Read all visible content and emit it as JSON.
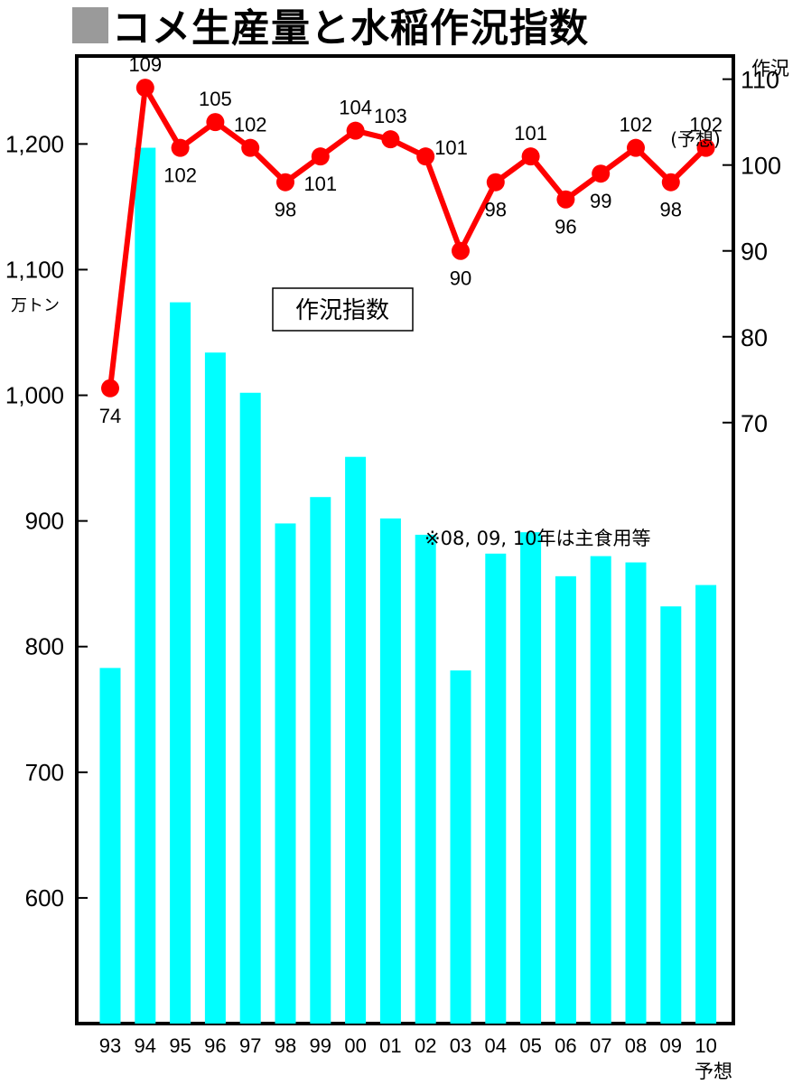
{
  "title": "コメ生産量と水稲作況指数",
  "chart_data": {
    "type": "bar",
    "categories": [
      "93",
      "94",
      "95",
      "96",
      "97",
      "98",
      "99",
      "00",
      "01",
      "02",
      "03",
      "04",
      "05",
      "06",
      "07",
      "08",
      "09",
      "10"
    ],
    "x_sublabel_last": "予想",
    "left_axis": {
      "unit": "万トン",
      "ticks": [
        600,
        700,
        800,
        900,
        1000,
        1100,
        1200
      ],
      "tick_labels": [
        "600",
        "700",
        "800",
        "900",
        "1,000",
        "1,100",
        "1,200"
      ],
      "range": [
        500,
        1270
      ]
    },
    "right_axis": {
      "label": "作況",
      "ticks": [
        70,
        80,
        90,
        100,
        110
      ],
      "range": [
        0,
        112.7
      ]
    },
    "series": [
      {
        "kind": "bar",
        "color": "#00ffff",
        "values": [
          783,
          1197,
          1074,
          1034,
          1002,
          898,
          919,
          951,
          902,
          889,
          781,
          874,
          891,
          856,
          872,
          867,
          832,
          849
        ]
      },
      {
        "kind": "line",
        "name": "作況指数",
        "color": "#ff0000",
        "values": [
          74,
          109,
          102,
          105,
          102,
          98,
          101,
          104,
          103,
          101,
          90,
          98,
          101,
          96,
          99,
          102,
          98,
          102
        ],
        "labels": [
          "74",
          "109",
          "102",
          "105",
          "102",
          "98",
          "101",
          "104",
          "103",
          "101",
          "90",
          "98",
          "101",
          "96",
          "99",
          "102",
          "98",
          "102"
        ]
      }
    ],
    "legend_box": "作況指数",
    "forecast_note": "(予想)",
    "annotation": "※08, 09, 10年は主食用等"
  }
}
